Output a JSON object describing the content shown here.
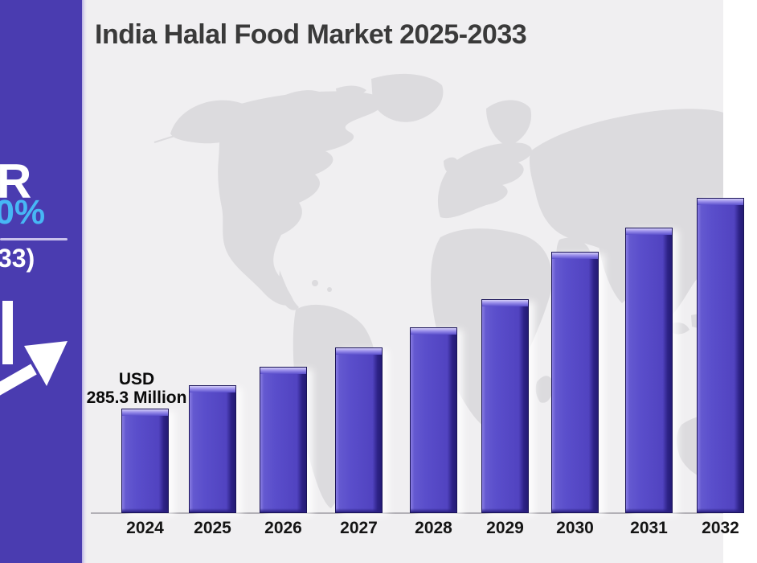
{
  "title": "India Halal Food Market 2025-2033",
  "sidebar": {
    "cagr_text_fragment": "R",
    "cagr_value_fragment": "0%",
    "period_fragment": "33)"
  },
  "colors": {
    "sidebar_bg": "#4a3cb0",
    "cagr_value_blue": "#47b7f5",
    "bar_fill": "#5a4ecb",
    "background": "#f0eff1",
    "map_fill": "#dcdbde",
    "title_text": "#3a3a3a"
  },
  "chart_data": {
    "type": "bar",
    "title": "India Halal Food Market 2025-2033",
    "categories": [
      "2024",
      "2025",
      "2026",
      "2027",
      "2028",
      "2029",
      "2030",
      "2031",
      "2032"
    ],
    "values": [
      285.3,
      350,
      402,
      454,
      508,
      587,
      715,
      782,
      863
    ],
    "unit": "USD Million",
    "xlabel": "",
    "ylabel": "",
    "grid": false,
    "legend": false,
    "background_motif": "light gray world map silhouette",
    "annotations": [
      {
        "category": "2024",
        "text_line1": "USD",
        "text_line2": "285.3 Million"
      }
    ]
  }
}
